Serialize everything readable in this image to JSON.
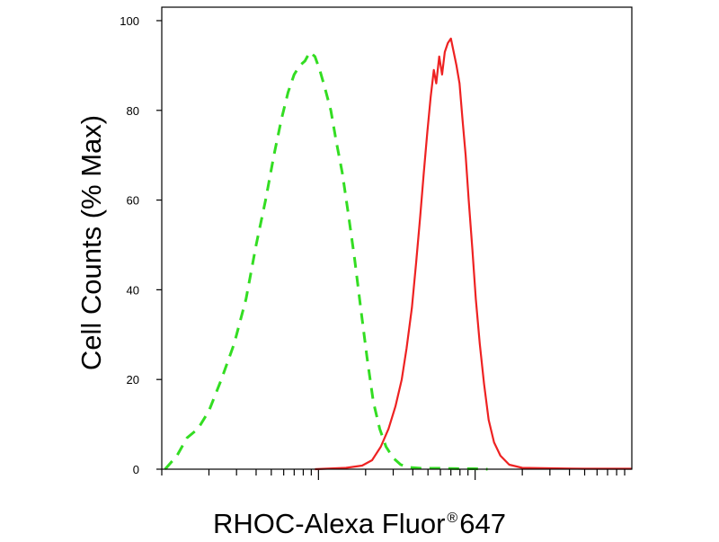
{
  "chart_data": {
    "type": "line",
    "xscale": "log",
    "ylabel": "Cell Counts (% Max)",
    "xlabel": {
      "main": "RHOC-Alexa Fluor",
      "mark": "®",
      "suffix": "647"
    },
    "ylim": [
      0,
      100
    ],
    "yticks": [
      0,
      20,
      40,
      60,
      80,
      100
    ],
    "xlim": [
      100,
      100000
    ],
    "xmajor": [
      1000,
      10000
    ],
    "grid": false,
    "legend": "none",
    "series": [
      {
        "color": "#33dd22",
        "style": "dashed",
        "points": [
          [
            105,
            0
          ],
          [
            125,
            3
          ],
          [
            145,
            7
          ],
          [
            170,
            9
          ],
          [
            200,
            13
          ],
          [
            240,
            20
          ],
          [
            290,
            28
          ],
          [
            345,
            38
          ],
          [
            400,
            50
          ],
          [
            460,
            60
          ],
          [
            520,
            70
          ],
          [
            580,
            78
          ],
          [
            640,
            84
          ],
          [
            700,
            88
          ],
          [
            760,
            90
          ],
          [
            820,
            91
          ],
          [
            880,
            93
          ],
          [
            950,
            92
          ],
          [
            1020,
            89
          ],
          [
            1100,
            85
          ],
          [
            1200,
            80
          ],
          [
            1300,
            73
          ],
          [
            1420,
            66
          ],
          [
            1550,
            57
          ],
          [
            1700,
            47
          ],
          [
            1860,
            36
          ],
          [
            2040,
            25
          ],
          [
            2240,
            15
          ],
          [
            2460,
            9
          ],
          [
            2700,
            5
          ],
          [
            3000,
            2.5
          ],
          [
            3350,
            1
          ],
          [
            3800,
            0.4
          ],
          [
            4500,
            0.2
          ],
          [
            6000,
            0.2
          ],
          [
            8000,
            0.1
          ],
          [
            10000,
            0.1
          ],
          [
            12000,
            0
          ]
        ]
      },
      {
        "color": "#ee2222",
        "style": "solid",
        "points": [
          [
            950,
            0
          ],
          [
            1500,
            0.3
          ],
          [
            1900,
            0.8
          ],
          [
            2200,
            2
          ],
          [
            2500,
            5
          ],
          [
            2800,
            9
          ],
          [
            3100,
            14
          ],
          [
            3400,
            20
          ],
          [
            3650,
            27
          ],
          [
            3950,
            36
          ],
          [
            4200,
            46
          ],
          [
            4450,
            56
          ],
          [
            4700,
            66
          ],
          [
            4950,
            75
          ],
          [
            5200,
            83
          ],
          [
            5450,
            89
          ],
          [
            5650,
            86
          ],
          [
            5900,
            92
          ],
          [
            6150,
            88
          ],
          [
            6400,
            93
          ],
          [
            6700,
            95
          ],
          [
            7000,
            96
          ],
          [
            7300,
            93
          ],
          [
            7600,
            90
          ],
          [
            7950,
            86
          ],
          [
            8300,
            78
          ],
          [
            8700,
            70
          ],
          [
            9100,
            60
          ],
          [
            9600,
            49
          ],
          [
            10100,
            38
          ],
          [
            10700,
            28
          ],
          [
            11400,
            19
          ],
          [
            12200,
            11
          ],
          [
            13200,
            6
          ],
          [
            14500,
            3
          ],
          [
            16500,
            1
          ],
          [
            20000,
            0.3
          ],
          [
            30000,
            0.2
          ],
          [
            50000,
            0.1
          ],
          [
            100000,
            0.1
          ]
        ]
      }
    ]
  }
}
